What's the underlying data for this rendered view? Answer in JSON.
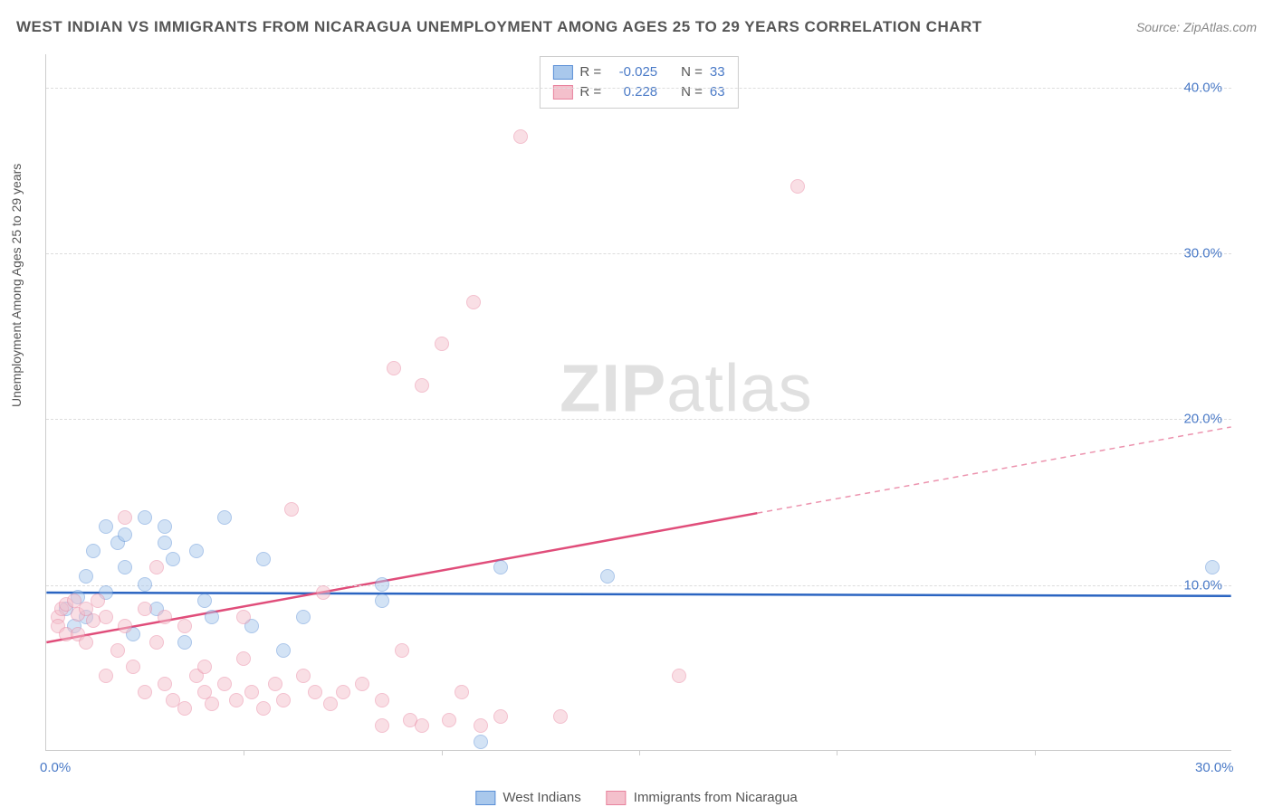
{
  "title": "WEST INDIAN VS IMMIGRANTS FROM NICARAGUA UNEMPLOYMENT AMONG AGES 25 TO 29 YEARS CORRELATION CHART",
  "source": "Source: ZipAtlas.com",
  "ylabel": "Unemployment Among Ages 25 to 29 years",
  "watermark_a": "ZIP",
  "watermark_b": "atlas",
  "chart": {
    "type": "scatter",
    "xlim": [
      0,
      30
    ],
    "ylim": [
      0,
      42
    ],
    "yticks": [
      {
        "v": 10,
        "label": "10.0%"
      },
      {
        "v": 20,
        "label": "20.0%"
      },
      {
        "v": 30,
        "label": "30.0%"
      },
      {
        "v": 40,
        "label": "40.0%"
      }
    ],
    "xticks": [
      {
        "v": 0,
        "label": "0.0%"
      },
      {
        "v": 30,
        "label": "30.0%"
      }
    ],
    "xtick_marks": [
      5,
      10,
      15,
      20,
      25
    ],
    "grid_color": "#dddddd",
    "background_color": "#ffffff",
    "marker_size": 16,
    "marker_opacity": 0.5
  },
  "series": [
    {
      "name": "West Indians",
      "legend_label": "West Indians",
      "fill": "#a9c8ec",
      "stroke": "#5a8fd6",
      "line_color": "#2a64c1",
      "r_label": "R =",
      "r_value": "-0.025",
      "n_label": "N =",
      "n_value": "33",
      "regression": {
        "x1": 0,
        "y1": 9.5,
        "x2": 30,
        "y2": 9.3,
        "solid_until_x": 30
      },
      "points": [
        [
          0.5,
          8.5
        ],
        [
          0.7,
          7.5
        ],
        [
          0.8,
          9.2
        ],
        [
          1.0,
          10.5
        ],
        [
          1.0,
          8.0
        ],
        [
          1.2,
          12.0
        ],
        [
          1.5,
          9.5
        ],
        [
          1.5,
          13.5
        ],
        [
          1.8,
          12.5
        ],
        [
          2.0,
          11.0
        ],
        [
          2.0,
          13.0
        ],
        [
          2.2,
          7.0
        ],
        [
          2.5,
          14.0
        ],
        [
          2.5,
          10.0
        ],
        [
          2.8,
          8.5
        ],
        [
          3.0,
          12.5
        ],
        [
          3.0,
          13.5
        ],
        [
          3.2,
          11.5
        ],
        [
          3.5,
          6.5
        ],
        [
          3.8,
          12.0
        ],
        [
          4.0,
          9.0
        ],
        [
          4.2,
          8.0
        ],
        [
          4.5,
          14.0
        ],
        [
          5.2,
          7.5
        ],
        [
          5.5,
          11.5
        ],
        [
          6.0,
          6.0
        ],
        [
          6.5,
          8.0
        ],
        [
          8.5,
          9.0
        ],
        [
          8.5,
          10.0
        ],
        [
          11.0,
          0.5
        ],
        [
          11.5,
          11.0
        ],
        [
          14.2,
          10.5
        ],
        [
          29.5,
          11.0
        ]
      ]
    },
    {
      "name": "Immigrants from Nicaragua",
      "legend_label": "Immigrants from Nicaragua",
      "fill": "#f4c0cc",
      "stroke": "#e8839e",
      "line_color": "#e04d7a",
      "r_label": "R =",
      "r_value": "0.228",
      "n_label": "N =",
      "n_value": "63",
      "regression": {
        "x1": 0,
        "y1": 6.5,
        "x2": 30,
        "y2": 19.5,
        "solid_until_x": 18
      },
      "points": [
        [
          0.3,
          8.0
        ],
        [
          0.3,
          7.5
        ],
        [
          0.4,
          8.5
        ],
        [
          0.5,
          7.0
        ],
        [
          0.5,
          8.8
        ],
        [
          0.7,
          9.0
        ],
        [
          0.8,
          7.0
        ],
        [
          0.8,
          8.2
        ],
        [
          1.0,
          8.5
        ],
        [
          1.0,
          6.5
        ],
        [
          1.2,
          7.8
        ],
        [
          1.3,
          9.0
        ],
        [
          1.5,
          8.0
        ],
        [
          1.5,
          4.5
        ],
        [
          1.8,
          6.0
        ],
        [
          2.0,
          7.5
        ],
        [
          2.0,
          14.0
        ],
        [
          2.2,
          5.0
        ],
        [
          2.5,
          8.5
        ],
        [
          2.5,
          3.5
        ],
        [
          2.8,
          11.0
        ],
        [
          2.8,
          6.5
        ],
        [
          3.0,
          4.0
        ],
        [
          3.0,
          8.0
        ],
        [
          3.2,
          3.0
        ],
        [
          3.5,
          2.5
        ],
        [
          3.5,
          7.5
        ],
        [
          3.8,
          4.5
        ],
        [
          4.0,
          5.0
        ],
        [
          4.0,
          3.5
        ],
        [
          4.2,
          2.8
        ],
        [
          4.5,
          4.0
        ],
        [
          4.8,
          3.0
        ],
        [
          5.0,
          8.0
        ],
        [
          5.0,
          5.5
        ],
        [
          5.2,
          3.5
        ],
        [
          5.5,
          2.5
        ],
        [
          5.8,
          4.0
        ],
        [
          6.0,
          3.0
        ],
        [
          6.2,
          14.5
        ],
        [
          6.5,
          4.5
        ],
        [
          6.8,
          3.5
        ],
        [
          7.0,
          9.5
        ],
        [
          7.2,
          2.8
        ],
        [
          7.5,
          3.5
        ],
        [
          8.0,
          4.0
        ],
        [
          8.5,
          3.0
        ],
        [
          8.5,
          1.5
        ],
        [
          8.8,
          23.0
        ],
        [
          9.0,
          6.0
        ],
        [
          9.2,
          1.8
        ],
        [
          9.5,
          22.0
        ],
        [
          9.5,
          1.5
        ],
        [
          10.0,
          24.5
        ],
        [
          10.2,
          1.8
        ],
        [
          10.5,
          3.5
        ],
        [
          10.8,
          27.0
        ],
        [
          11.0,
          1.5
        ],
        [
          11.5,
          2.0
        ],
        [
          12.0,
          37.0
        ],
        [
          13.0,
          2.0
        ],
        [
          16.0,
          4.5
        ],
        [
          19.0,
          34.0
        ]
      ]
    }
  ]
}
